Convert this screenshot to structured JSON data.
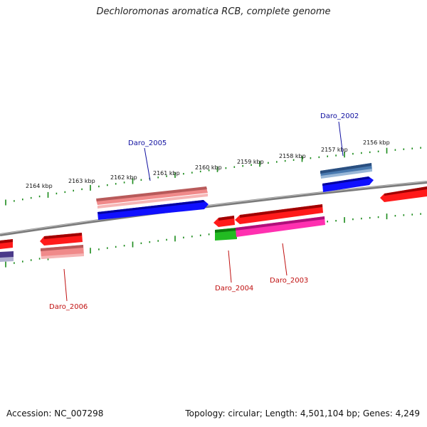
{
  "title": "Dechloromonas aromatica RCB, complete genome",
  "footer": {
    "accession": "Accession: NC_007298",
    "summary": "Topology: circular; Length: 4,501,104 bp; Genes: 4,249"
  },
  "kbp_labels": [
    "2164 kbp",
    "2163 kbp",
    "2162 kbp",
    "2161 kbp",
    "2160 kbp",
    "2159 kbp",
    "2158 kbp",
    "2157 kbp",
    "2156 kbp"
  ],
  "gene_labels": {
    "daro_2002": "Daro_2002",
    "daro_2003": "Daro_2003",
    "daro_2004": "Daro_2004",
    "daro_2005": "Daro_2005",
    "daro_2006": "Daro_2006"
  },
  "colors": {
    "forward_label": "#1010a0",
    "reverse_label": "#c01010",
    "tick": "#1a8a1a",
    "backbone": "#808080"
  }
}
